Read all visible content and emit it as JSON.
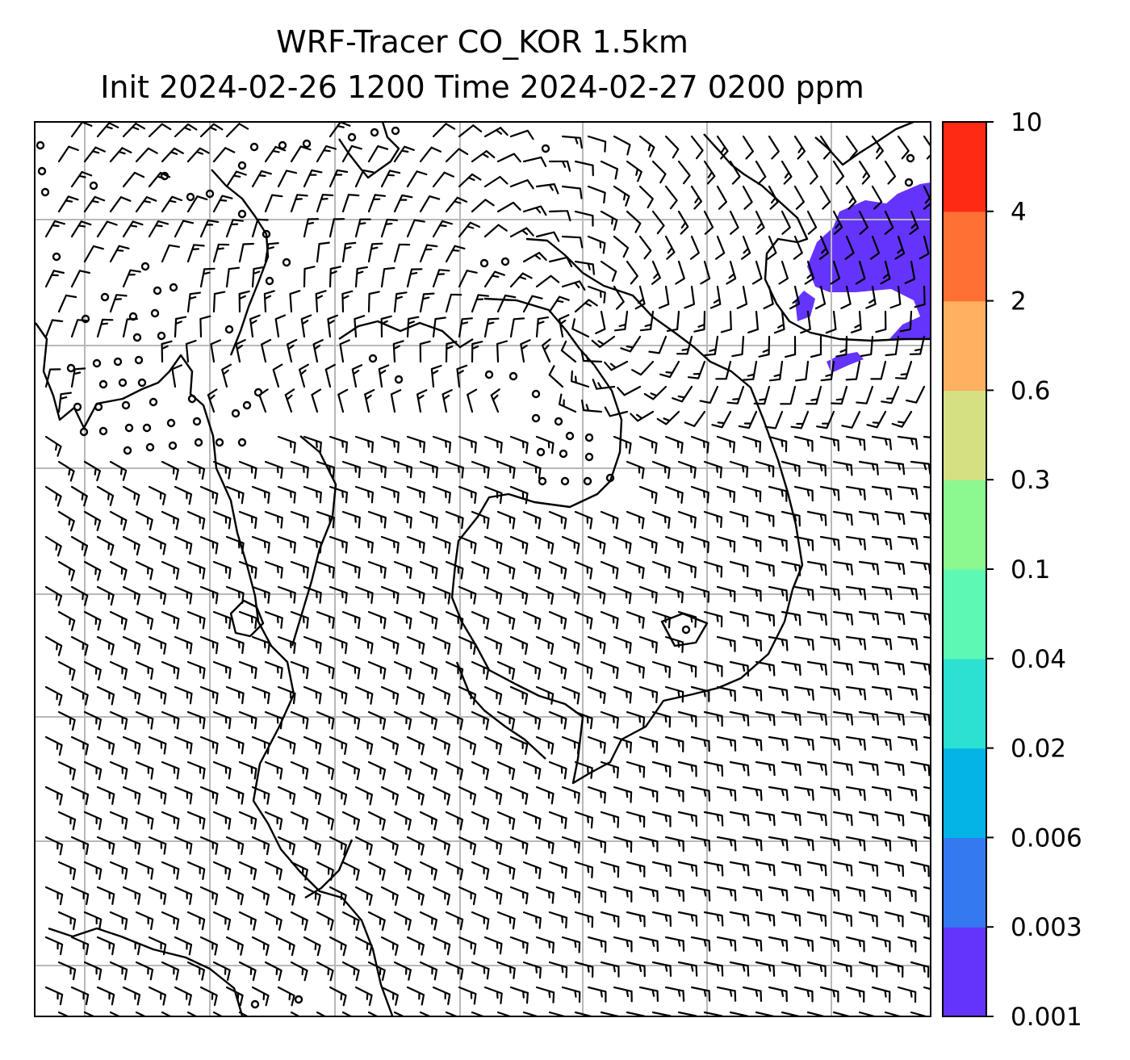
{
  "title": {
    "line1": "WRF-Tracer CO_KOR 1.5km",
    "line2": "Init 2024-02-26 1200 Time 2024-02-27 0200 ppm"
  },
  "colorbar": {
    "ticks": [
      "0.001",
      "0.003",
      "0.006",
      "0.02",
      "0.04",
      "0.1",
      "0.3",
      "0.6",
      "2",
      "4",
      "10"
    ],
    "colors": [
      "#6434fc",
      "#3479f0",
      "#04b4e6",
      "#2ce0d2",
      "#5cf8b4",
      "#8cf890",
      "#d4e082",
      "#ffb060",
      "#ff7034",
      "#ff2a14"
    ]
  },
  "colors": {
    "plume": "#6434fc",
    "grid": "#b8b8b8",
    "coast": "#000000",
    "barb": "#000000"
  },
  "map_content": {
    "gridlines": true,
    "wind_barbs": true,
    "coastlines": true,
    "tracer_plume_region": "upper-right"
  }
}
